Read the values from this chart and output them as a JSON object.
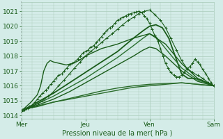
{
  "xlabel": "Pression niveau de la mer( hPa )",
  "bg_color": "#d4ece8",
  "grid_color": "#aaccbb",
  "line_color_dark": "#1a5c1a",
  "xlim": [
    0,
    3.0
  ],
  "ylim": [
    1013.8,
    1021.6
  ],
  "yticks": [
    1014,
    1015,
    1016,
    1017,
    1018,
    1019,
    1020,
    1021
  ],
  "xtick_labels": [
    "Mer",
    "Jeu",
    "Ven",
    "Sam"
  ],
  "xtick_pos": [
    0,
    1,
    2,
    3
  ],
  "series": [
    {
      "x": [
        0.0,
        0.04,
        0.08,
        0.12,
        0.17,
        0.21,
        0.25,
        0.29,
        0.33,
        0.38,
        0.42,
        0.46,
        0.5,
        0.54,
        0.58,
        0.63,
        0.67,
        0.71,
        0.75,
        0.79,
        0.83,
        0.88,
        0.92,
        0.96,
        1.0,
        1.04,
        1.08,
        1.13,
        1.17,
        1.21,
        1.25,
        1.29,
        1.33,
        1.38,
        1.42,
        1.46,
        1.5,
        1.54,
        1.58,
        1.63,
        1.67,
        1.71,
        1.75,
        1.79,
        1.83,
        1.88,
        1.92,
        1.96,
        2.0,
        2.04,
        2.08,
        2.13,
        2.17,
        2.21,
        2.25,
        2.29,
        2.33,
        2.38,
        2.42,
        2.46,
        2.5,
        2.54,
        2.58,
        2.63,
        2.67,
        2.71,
        2.75,
        2.79,
        2.83,
        2.88,
        2.92,
        2.96,
        3.0
      ],
      "y": [
        1014.3,
        1014.4,
        1014.5,
        1014.6,
        1014.7,
        1014.9,
        1015.1,
        1015.3,
        1015.5,
        1015.7,
        1015.9,
        1016.1,
        1016.3,
        1016.5,
        1016.7,
        1016.8,
        1017.0,
        1017.2,
        1017.4,
        1017.5,
        1017.6,
        1017.8,
        1018.0,
        1018.2,
        1018.3,
        1018.4,
        1018.6,
        1018.7,
        1018.9,
        1019.1,
        1019.3,
        1019.5,
        1019.7,
        1019.9,
        1020.0,
        1020.2,
        1020.4,
        1020.5,
        1020.6,
        1020.7,
        1020.8,
        1020.85,
        1020.9,
        1020.95,
        1021.0,
        1020.9,
        1020.7,
        1020.5,
        1020.2,
        1019.8,
        1019.4,
        1019.0,
        1018.5,
        1018.0,
        1017.5,
        1017.2,
        1016.9,
        1016.7,
        1016.6,
        1016.6,
        1016.7,
        1016.9,
        1017.1,
        1017.3,
        1017.5,
        1017.8,
        1017.6,
        1017.4,
        1017.1,
        1016.8,
        1016.5,
        1016.2,
        1016.0
      ],
      "style": "dotted_marker",
      "color": "#1a5c1a",
      "linewidth": 0.8,
      "markersize": 2.5
    },
    {
      "x": [
        0.0,
        0.05,
        0.1,
        0.17,
        0.25,
        0.33,
        0.42,
        0.5,
        0.58,
        0.67,
        0.75,
        0.83,
        0.92,
        1.0,
        1.08,
        1.17,
        1.25,
        1.33,
        1.42,
        1.5,
        1.58,
        1.67,
        1.75,
        1.83,
        1.92,
        2.0,
        2.08,
        2.17,
        2.25,
        2.33,
        2.42,
        2.5,
        2.58,
        2.67,
        2.75,
        2.83,
        2.92,
        3.0
      ],
      "y": [
        1014.3,
        1014.4,
        1014.5,
        1014.6,
        1014.8,
        1015.0,
        1015.3,
        1015.6,
        1016.0,
        1016.4,
        1016.8,
        1017.2,
        1017.6,
        1018.0,
        1018.3,
        1018.6,
        1018.9,
        1019.2,
        1019.5,
        1019.8,
        1020.1,
        1020.4,
        1020.6,
        1020.85,
        1021.0,
        1021.1,
        1020.8,
        1020.4,
        1019.9,
        1019.2,
        1018.4,
        1017.7,
        1017.2,
        1016.9,
        1016.7,
        1016.5,
        1016.2,
        1016.0
      ],
      "style": "dotted_marker",
      "color": "#1a5c1a",
      "linewidth": 0.8,
      "markersize": 2.5
    },
    {
      "x": [
        0.0,
        0.25,
        0.5,
        0.75,
        1.0,
        1.25,
        1.5,
        1.75,
        1.9,
        2.0,
        2.1,
        2.2,
        2.3,
        2.4,
        2.5,
        2.6,
        2.7,
        2.8,
        2.9,
        3.0
      ],
      "y": [
        1014.3,
        1014.9,
        1015.5,
        1016.2,
        1016.9,
        1017.6,
        1018.3,
        1019.2,
        1019.7,
        1020.0,
        1020.1,
        1019.9,
        1019.2,
        1018.0,
        1016.8,
        1016.5,
        1016.5,
        1016.4,
        1016.2,
        1016.0
      ],
      "style": "line",
      "color": "#1a5c1a",
      "linewidth": 1.3
    },
    {
      "x": [
        0.0,
        0.25,
        0.5,
        0.75,
        1.0,
        1.25,
        1.5,
        1.75,
        2.0,
        2.25,
        2.5,
        2.75,
        3.0
      ],
      "y": [
        1014.4,
        1014.6,
        1014.9,
        1015.1,
        1015.3,
        1015.5,
        1015.7,
        1015.9,
        1016.0,
        1016.1,
        1016.2,
        1016.1,
        1016.0
      ],
      "style": "line",
      "color": "#2a6c2a",
      "linewidth": 1.0
    },
    {
      "x": [
        0.0,
        0.25,
        0.5,
        0.75,
        1.0,
        1.25,
        1.5,
        1.75,
        2.0,
        2.25,
        2.5,
        2.75,
        3.0
      ],
      "y": [
        1014.4,
        1014.65,
        1014.9,
        1015.15,
        1015.4,
        1015.65,
        1015.85,
        1016.0,
        1016.1,
        1016.15,
        1016.2,
        1016.1,
        1016.0
      ],
      "style": "line",
      "color": "#2a6c2a",
      "linewidth": 1.0
    },
    {
      "x": [
        0.0,
        0.25,
        0.5,
        0.75,
        1.0,
        1.25,
        1.5,
        1.75,
        1.9,
        2.0,
        2.1,
        2.25,
        2.5,
        2.75,
        3.0
      ],
      "y": [
        1014.3,
        1014.7,
        1015.1,
        1015.6,
        1016.2,
        1016.8,
        1017.4,
        1018.0,
        1018.4,
        1018.6,
        1018.5,
        1018.0,
        1017.0,
        1016.3,
        1016.0
      ],
      "style": "line",
      "color": "#1a5c1a",
      "linewidth": 1.0
    },
    {
      "x": [
        0.0,
        0.25,
        0.5,
        0.75,
        1.0,
        1.25,
        1.5,
        1.75,
        1.9,
        2.0,
        2.1,
        2.25,
        2.5,
        2.75,
        3.0
      ],
      "y": [
        1014.3,
        1014.8,
        1015.3,
        1015.9,
        1016.5,
        1017.2,
        1017.9,
        1018.7,
        1019.2,
        1019.5,
        1019.3,
        1018.5,
        1017.2,
        1016.4,
        1016.0
      ],
      "style": "line",
      "color": "#2a7030",
      "linewidth": 1.0
    },
    {
      "x": [
        0.0,
        0.15,
        0.25,
        0.3,
        0.35,
        0.4,
        0.45,
        0.5,
        0.6,
        0.7,
        0.8,
        0.9,
        1.0,
        1.1,
        1.25,
        1.5,
        1.75,
        2.0,
        2.25,
        2.5,
        2.75,
        3.0
      ],
      "y": [
        1014.3,
        1014.9,
        1015.4,
        1016.0,
        1017.0,
        1017.5,
        1017.7,
        1017.6,
        1017.5,
        1017.4,
        1017.5,
        1017.7,
        1018.0,
        1018.2,
        1018.5,
        1018.8,
        1019.2,
        1019.5,
        1018.8,
        1017.5,
        1016.5,
        1016.0
      ],
      "style": "line",
      "color": "#1a5c1a",
      "linewidth": 1.0
    }
  ]
}
